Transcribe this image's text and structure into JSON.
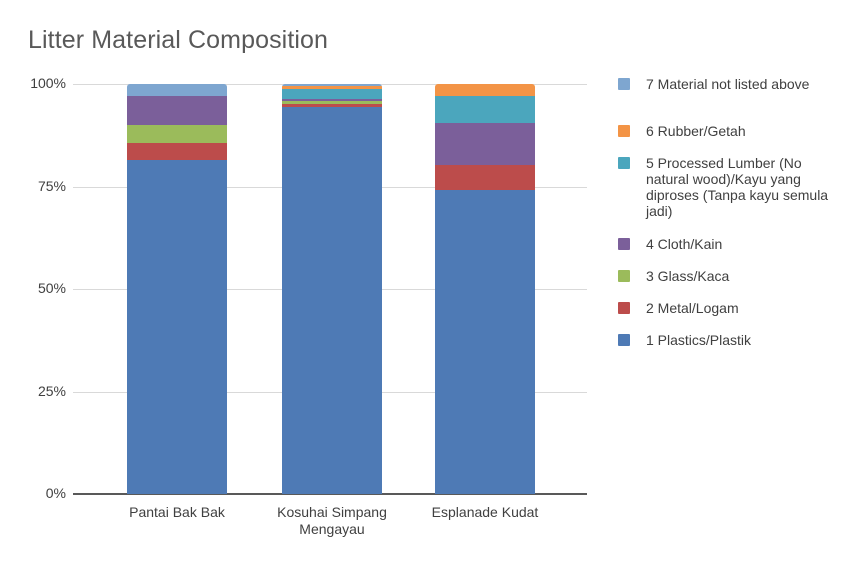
{
  "chart_data": {
    "type": "bar",
    "stacked": true,
    "normalized": true,
    "title": "Litter Material Composition",
    "xlabel": "",
    "ylabel": "",
    "ylim": [
      0,
      100
    ],
    "yticks": [
      "0%",
      "25%",
      "50%",
      "75%",
      "100%"
    ],
    "grid": true,
    "legend_position": "right",
    "categories": [
      "Pantai Bak Bak",
      "Kosuhai Simpang Mengayau",
      "Esplanade Kudat"
    ],
    "category_labels": [
      [
        "Pantai Bak Bak"
      ],
      [
        "Kosuhai Simpang",
        "Mengayau"
      ],
      [
        "Esplanade Kudat"
      ]
    ],
    "series": [
      {
        "name": "1 Plastics/Plastik",
        "color": "#4e7ab5",
        "values": [
          81.4,
          94.3,
          74.2
        ]
      },
      {
        "name": "2 Metal/Logam",
        "color": "#bc4c4b",
        "values": [
          4.3,
          0.9,
          6.1
        ]
      },
      {
        "name": "3 Glass/Kaca",
        "color": "#9bbb5b",
        "values": [
          4.4,
          0.7,
          0.0
        ]
      },
      {
        "name": "4 Cloth/Kain",
        "color": "#7b5f9a",
        "values": [
          7.0,
          0.5,
          10.2
        ]
      },
      {
        "name": "5 Processed Lumber (No natural wood)/Kayu yang diproses (Tanpa kayu semula jadi)",
        "color": "#4ba6bd",
        "values": [
          0.0,
          2.4,
          6.6
        ]
      },
      {
        "name": "6 Rubber/Getah",
        "color": "#f39446",
        "values": [
          0.0,
          0.8,
          2.9
        ]
      },
      {
        "name": "7 Material not listed above",
        "color": "#7ea6d0",
        "values": [
          2.9,
          0.4,
          0.0
        ]
      }
    ]
  },
  "legend": [
    {
      "label": "7 Material not listed above",
      "color": "#7ea6d0"
    },
    {
      "label": "6 Rubber/Getah",
      "color": "#f39446"
    },
    {
      "label": "5 Processed Lumber (No natural wood)/Kayu yang diproses (Tanpa kayu semula jadi)",
      "color": "#4ba6bd"
    },
    {
      "label": "4 Cloth/Kain",
      "color": "#7b5f9a"
    },
    {
      "label": "3 Glass/Kaca",
      "color": "#9bbb5b"
    },
    {
      "label": "2 Metal/Logam",
      "color": "#bc4c4b"
    },
    {
      "label": "1 Plastics/Plastik",
      "color": "#4e7ab5"
    }
  ]
}
